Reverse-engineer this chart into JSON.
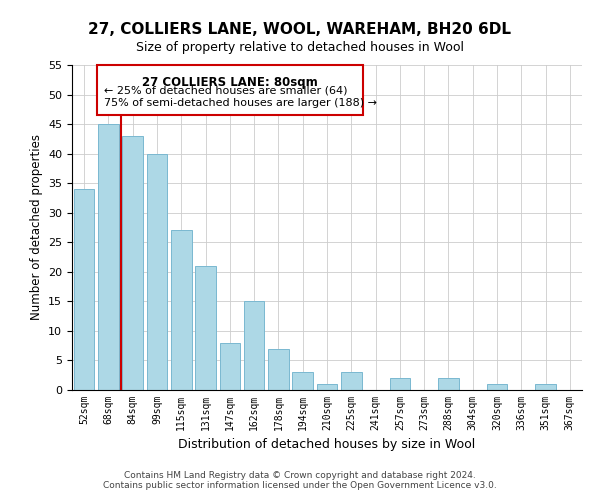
{
  "title": "27, COLLIERS LANE, WOOL, WAREHAM, BH20 6DL",
  "subtitle": "Size of property relative to detached houses in Wool",
  "xlabel": "Distribution of detached houses by size in Wool",
  "ylabel": "Number of detached properties",
  "bar_labels": [
    "52sqm",
    "68sqm",
    "84sqm",
    "99sqm",
    "115sqm",
    "131sqm",
    "147sqm",
    "162sqm",
    "178sqm",
    "194sqm",
    "210sqm",
    "225sqm",
    "241sqm",
    "257sqm",
    "273sqm",
    "288sqm",
    "304sqm",
    "320sqm",
    "336sqm",
    "351sqm",
    "367sqm"
  ],
  "bar_values": [
    34,
    45,
    43,
    40,
    27,
    21,
    8,
    15,
    7,
    3,
    1,
    3,
    0,
    2,
    0,
    2,
    0,
    1,
    0,
    1,
    0
  ],
  "bar_color": "#add8e6",
  "bar_edge_color": "#7ab8d0",
  "highlight_color": "#cc0000",
  "annotation_title": "27 COLLIERS LANE: 80sqm",
  "annotation_line1": "← 25% of detached houses are smaller (64)",
  "annotation_line2": "75% of semi-detached houses are larger (188) →",
  "ylim": [
    0,
    55
  ],
  "yticks": [
    0,
    5,
    10,
    15,
    20,
    25,
    30,
    35,
    40,
    45,
    50,
    55
  ],
  "footer_line1": "Contains HM Land Registry data © Crown copyright and database right 2024.",
  "footer_line2": "Contains public sector information licensed under the Open Government Licence v3.0."
}
